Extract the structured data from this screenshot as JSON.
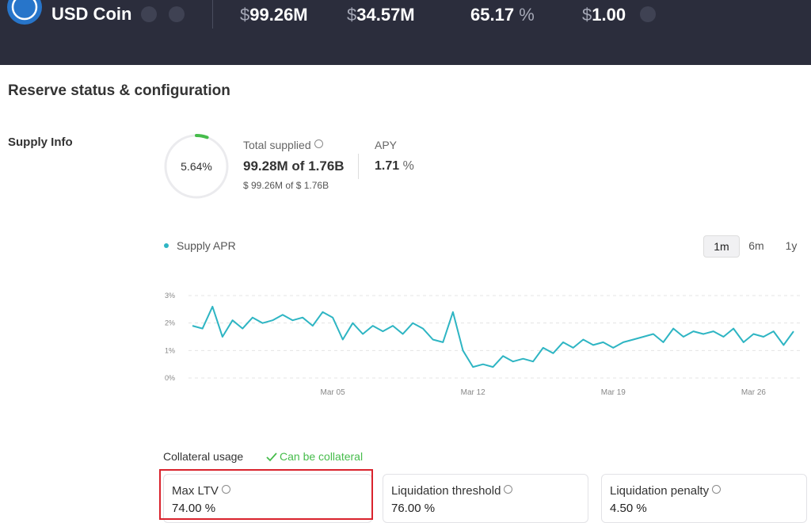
{
  "header": {
    "asset": "USD Coin",
    "stats": [
      {
        "prefix": "$",
        "value": "99.26M"
      },
      {
        "prefix": "$",
        "value": "34.57M"
      },
      {
        "value": "65.17",
        "suffix": "%"
      },
      {
        "prefix": "$",
        "value": "1.00"
      }
    ]
  },
  "section_title": "Reserve status & configuration",
  "supply_info": {
    "label": "Supply Info",
    "utilization": {
      "value": 5.64,
      "label": "5.64%"
    },
    "total_supplied_label": "Total supplied",
    "total_supplied": "99.28M of 1.76B",
    "total_supplied_usd": "$ 99.26M of $ 1.76B",
    "apy_label": "APY",
    "apy_value": "1.71",
    "apy_unit": "%"
  },
  "chart_data": {
    "type": "line",
    "ranges": [
      "1m",
      "6m",
      "1y"
    ],
    "selected_range": "1m",
    "categories": [
      null,
      null,
      null,
      null,
      null,
      null,
      null,
      null,
      null,
      null,
      null,
      null,
      null,
      null,
      "Mar 05",
      null,
      null,
      null,
      null,
      null,
      null,
      null,
      null,
      null,
      null,
      null,
      null,
      null,
      "Mar 12",
      null,
      null,
      null,
      null,
      null,
      null,
      null,
      null,
      null,
      null,
      null,
      null,
      null,
      "Mar 19",
      null,
      null,
      null,
      null,
      null,
      null,
      null,
      null,
      null,
      null,
      null,
      null,
      null,
      "Mar 26",
      null,
      null,
      null,
      null
    ],
    "series": [
      {
        "name": "Supply APR",
        "color": "#2eb5c3",
        "values": [
          1.9,
          1.8,
          2.6,
          1.5,
          2.1,
          1.8,
          2.2,
          2.0,
          2.1,
          2.3,
          2.1,
          2.2,
          1.9,
          2.4,
          2.2,
          1.4,
          2.0,
          1.6,
          1.9,
          1.7,
          1.9,
          1.6,
          2.0,
          1.8,
          1.4,
          1.3,
          2.4,
          1.0,
          0.4,
          0.5,
          0.4,
          0.8,
          0.6,
          0.7,
          0.6,
          1.1,
          0.9,
          1.3,
          1.1,
          1.4,
          1.2,
          1.3,
          1.1,
          1.3,
          1.4,
          1.5,
          1.6,
          1.3,
          1.8,
          1.5,
          1.7,
          1.6,
          1.7,
          1.5,
          1.8,
          1.3,
          1.6,
          1.5,
          1.7,
          1.2,
          1.7
        ]
      }
    ],
    "ylim": [
      0,
      3
    ],
    "yticks": [
      {
        "value": 0,
        "label": "0%"
      },
      {
        "value": 1,
        "label": "1%"
      },
      {
        "value": 2,
        "label": "2%"
      },
      {
        "value": 3,
        "label": "3%"
      }
    ],
    "grid": true
  },
  "collateral": {
    "label": "Collateral usage",
    "status": "Can be collateral",
    "cards": [
      {
        "label": "Max LTV",
        "value": "74.00 %"
      },
      {
        "label": "Liquidation threshold",
        "value": "76.00 %"
      },
      {
        "label": "Liquidation penalty",
        "value": "4.50 %"
      }
    ]
  }
}
